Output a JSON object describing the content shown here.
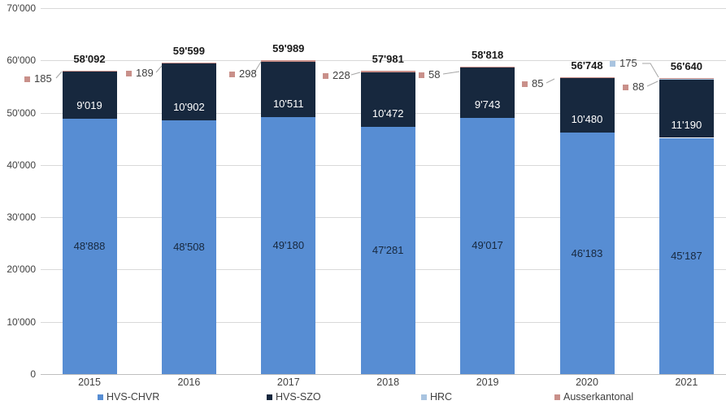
{
  "chart_data": {
    "type": "bar",
    "stacked": true,
    "title": "",
    "xlabel": "",
    "ylabel": "",
    "grid": true,
    "ylim": [
      0,
      70000
    ],
    "categories": [
      "2015",
      "2016",
      "2017",
      "2018",
      "2019",
      "2020",
      "2021"
    ],
    "series": [
      {
        "name": "HVS-CHVR",
        "color": "#578DD3",
        "values": [
          48888,
          48508,
          49180,
          47281,
          49017,
          46183,
          45187
        ],
        "labels": [
          "48'888",
          "48'508",
          "49'180",
          "47'281",
          "49'017",
          "46'183",
          "45'187"
        ],
        "label_color": "#17283E",
        "label_position": "center"
      },
      {
        "name": "HVS-SZO",
        "color": "#17283E",
        "values": [
          9019,
          10902,
          10511,
          10472,
          9743,
          10480,
          11190
        ],
        "labels": [
          "9'019",
          "10'902",
          "10'511",
          "10'472",
          "9'743",
          "10'480",
          "11'190"
        ],
        "label_color": "#FFFFFF",
        "label_position": "inside-base"
      },
      {
        "name": "HRC",
        "color": "#A9C4E0",
        "values": [
          0,
          0,
          0,
          0,
          0,
          0,
          175
        ]
      },
      {
        "name": "Ausserkantonal",
        "color": "#C9908A",
        "values": [
          185,
          189,
          298,
          228,
          58,
          85,
          88
        ]
      }
    ],
    "totals": [
      "58'092",
      "59'599",
      "59'989",
      "57'981",
      "58'818",
      "56'748",
      "56'640"
    ],
    "callouts": [
      {
        "text": "185",
        "series": "Ausserkantonal",
        "category": "2015"
      },
      {
        "text": "189",
        "series": "Ausserkantonal",
        "category": "2016"
      },
      {
        "text": "298",
        "series": "Ausserkantonal",
        "category": "2017"
      },
      {
        "text": "228",
        "series": "Ausserkantonal",
        "category": "2018"
      },
      {
        "text": "58",
        "series": "Ausserkantonal",
        "category": "2019"
      },
      {
        "text": "85",
        "series": "Ausserkantonal",
        "category": "2020"
      },
      {
        "text": "175",
        "series": "HRC",
        "category": "2021"
      },
      {
        "text": "88",
        "series": "Ausserkantonal",
        "category": "2021"
      }
    ],
    "y_axis": {
      "ticks": [
        "0",
        "10'000",
        "20'000",
        "30'000",
        "40'000",
        "50'000",
        "60'000",
        "70'000"
      ],
      "tick_values": [
        0,
        10000,
        20000,
        30000,
        40000,
        50000,
        60000,
        70000
      ]
    },
    "legend": {
      "position": "bottom",
      "items": [
        "HVS-CHVR",
        "HVS-SZO",
        "HRC",
        "Ausserkantonal"
      ]
    },
    "style_colors": {
      "gridline": "#D9D9D9",
      "axis_line": "#BFBFBF",
      "callout_line": "#A6A6A6",
      "axis_text": "#404040",
      "total_text": "#1A1A1A"
    }
  }
}
